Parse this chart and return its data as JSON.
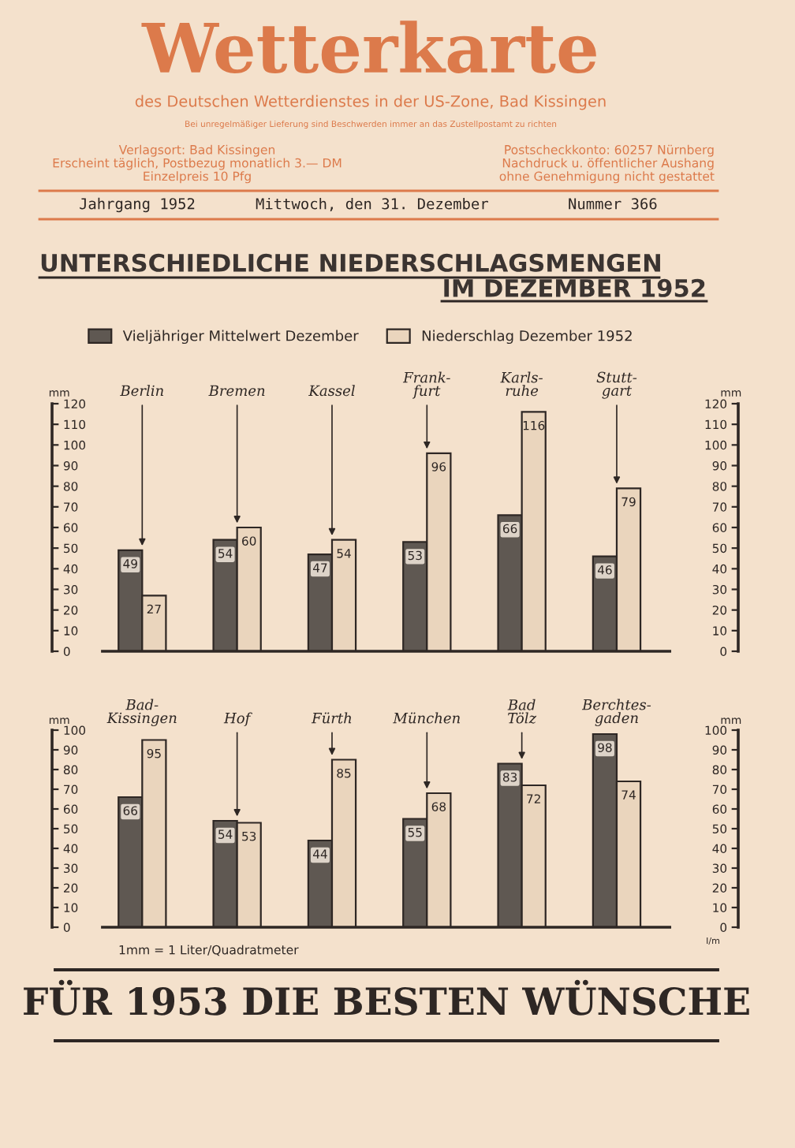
{
  "chart_data": [
    {
      "type": "bar",
      "title": "UNTERSCHIEDLICHE NIEDERSCHLAGSMENGEN\nIM DEZEMBER 1952",
      "annotations": [
        "Wetterkarte",
        "des Deutschen Wetterdienstes in der US-Zone, Bad Kissingen",
        "Bei unregelmäßiger Lieferung sind Beschwerden immer an das Zustellpostamt zu richten",
        "Verlagsort: Bad Kissingen\nErscheint täglich, Postbezug monatlich 3.— DM\nEinzelpreis 10 Pfg",
        "Postscheckkonto: 60257 Nürnberg\nNachdruck u. öffentlicher Aushang\nohne Genehmigung nicht gestattet",
        "Jahrgang 1952",
        "Mittwoch, den 31. Dezember",
        "Nummer 366"
      ],
      "categories": [
        "Berlin",
        "Bremen",
        "Kassel",
        "Frank-\nfurt",
        "Karls-\nruhe",
        "Stutt-\ngart"
      ],
      "series": [
        {
          "name": "Vieljähriger Mittelwert Dezember",
          "color": "#5f5852",
          "values": [
            49,
            54,
            47,
            53,
            66,
            46
          ]
        },
        {
          "name": "Niederschlag Dezember 1952",
          "color": "#ead5bd",
          "values": [
            27,
            60,
            54,
            96,
            116,
            79
          ]
        }
      ],
      "ylabel": "mm",
      "y2label": "mm",
      "ylim": [
        0,
        120
      ],
      "yticks": [
        0,
        10,
        20,
        30,
        40,
        50,
        60,
        70,
        80,
        90,
        100,
        110,
        120
      ],
      "y2lim": [
        0,
        120
      ],
      "y2ticks": [
        0,
        10,
        20,
        30,
        40,
        50,
        60,
        70,
        80,
        90,
        100,
        110,
        120
      ],
      "data_labels": true,
      "legend": "top"
    },
    {
      "type": "bar",
      "annotations": [
        "1mm = 1 Liter/Quadratmeter",
        "I/m",
        "FÜR 1953 DIE BESTEN WÜNSCHE"
      ],
      "categories": [
        "Bad-\nKissingen",
        "Hof",
        "Fürth",
        "München",
        "Bad\nTölz",
        "Berchtes-\ngaden"
      ],
      "series": [
        {
          "color": "#5f5852",
          "values": [
            66,
            54,
            44,
            55,
            83,
            98
          ]
        },
        {
          "color": "#ead5bd",
          "values": [
            95,
            53,
            85,
            68,
            72,
            74
          ]
        }
      ],
      "ylabel": "mm",
      "y2label": "mm",
      "ylim": [
        0,
        100
      ],
      "yticks": [
        0,
        10,
        20,
        30,
        40,
        50,
        60,
        70,
        80,
        90,
        100
      ],
      "y2lim": [
        0,
        100
      ],
      "y2ticks": [
        0,
        10,
        20,
        30,
        40,
        50,
        60,
        70,
        80,
        90,
        100
      ],
      "data_labels": true
    }
  ]
}
